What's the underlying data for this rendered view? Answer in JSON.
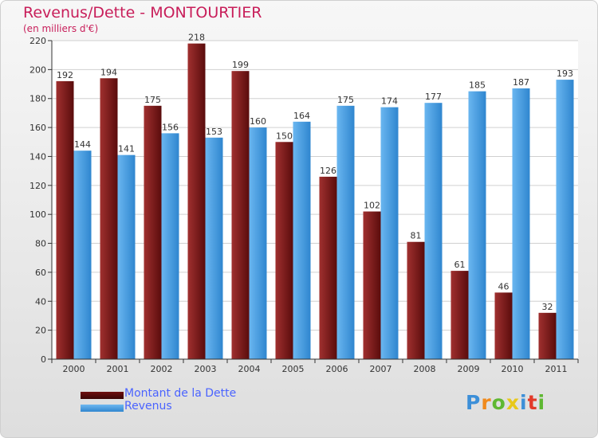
{
  "chart_data": {
    "type": "bar",
    "title": "Revenus/Dette - MONTOURTIER",
    "subtitle": "(en milliers d'€)",
    "categories": [
      "2000",
      "2001",
      "2002",
      "2003",
      "2004",
      "2005",
      "2006",
      "2007",
      "2008",
      "2009",
      "2010",
      "2011"
    ],
    "series": [
      {
        "name": "Montant de la Dette",
        "values": [
          192,
          194,
          175,
          218,
          199,
          150,
          126,
          102,
          81,
          61,
          46,
          32
        ],
        "color": "#8b1a1a"
      },
      {
        "name": "Revenus",
        "values": [
          144,
          141,
          156,
          153,
          160,
          164,
          175,
          174,
          177,
          185,
          187,
          193
        ],
        "color": "#4aa3e8"
      }
    ],
    "ylim": [
      0,
      220
    ],
    "yticks": [
      0,
      20,
      40,
      60,
      80,
      100,
      120,
      140,
      160,
      180,
      200,
      220
    ],
    "grid": true,
    "legend": "bottom-left"
  },
  "logo": {
    "letters": [
      {
        "ch": "P",
        "color": "#3c8fd8"
      },
      {
        "ch": "r",
        "color": "#f08a1c"
      },
      {
        "ch": "o",
        "color": "#5fb832"
      },
      {
        "ch": "x",
        "color": "#e8c81a"
      },
      {
        "ch": "i",
        "color": "#3c8fd8"
      },
      {
        "ch": "t",
        "color": "#e23a2a"
      },
      {
        "ch": "i",
        "color": "#5fb832"
      }
    ]
  }
}
